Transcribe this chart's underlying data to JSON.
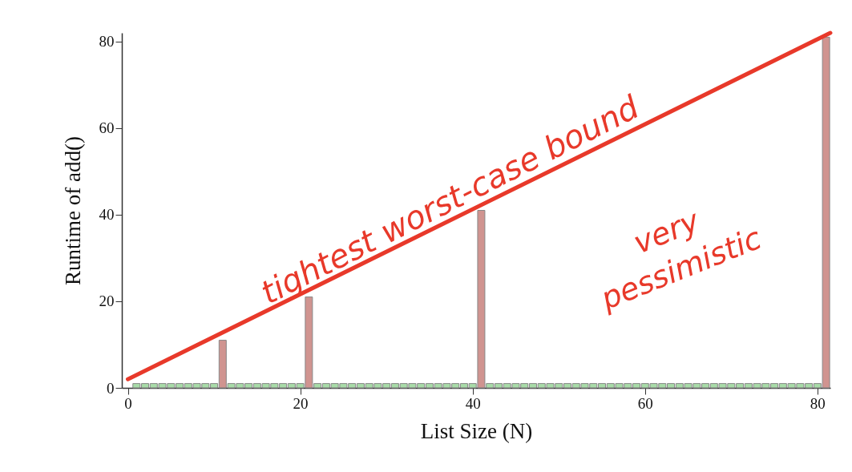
{
  "chart_data": {
    "type": "bar",
    "xlabel": "List Size (N)",
    "ylabel": "Runtime of add()",
    "xlim": [
      -0.7,
      81.5
    ],
    "xticks": [
      0,
      20,
      40,
      60,
      80
    ],
    "ylim": [
      0,
      82
    ],
    "yticks": [
      0,
      20,
      40,
      60,
      80
    ],
    "series": [
      {
        "x": [
          1,
          2,
          3,
          4,
          5,
          6,
          7,
          8,
          9,
          10,
          11,
          12,
          13,
          14,
          15,
          16,
          17,
          18,
          19,
          20,
          21,
          22,
          23,
          24,
          25,
          26,
          27,
          28,
          29,
          30,
          31,
          32,
          33,
          34,
          35,
          36,
          37,
          38,
          39,
          40,
          41,
          42,
          43,
          44,
          45,
          46,
          47,
          48,
          49,
          50,
          51,
          52,
          53,
          54,
          55,
          56,
          57,
          58,
          59,
          60,
          61,
          62,
          63,
          64,
          65,
          66,
          67,
          68,
          69,
          70,
          71,
          72,
          73,
          74,
          75,
          76,
          77,
          78,
          79,
          80,
          81
        ],
        "values": [
          1,
          1,
          1,
          1,
          1,
          1,
          1,
          1,
          1,
          1,
          11,
          1,
          1,
          1,
          1,
          1,
          1,
          1,
          1,
          1,
          21,
          1,
          1,
          1,
          1,
          1,
          1,
          1,
          1,
          1,
          1,
          1,
          1,
          1,
          1,
          1,
          1,
          1,
          1,
          1,
          41,
          1,
          1,
          1,
          1,
          1,
          1,
          1,
          1,
          1,
          1,
          1,
          1,
          1,
          1,
          1,
          1,
          1,
          1,
          1,
          1,
          1,
          1,
          1,
          1,
          1,
          1,
          1,
          1,
          1,
          1,
          1,
          1,
          1,
          1,
          1,
          1,
          1,
          1,
          1,
          81
        ],
        "colors": [
          "#a8dca8",
          "#a8dca8",
          "#a8dca8",
          "#a8dca8",
          "#a8dca8",
          "#a8dca8",
          "#a8dca8",
          "#a8dca8",
          "#a8dca8",
          "#a8dca8",
          "#d09490",
          "#a8dca8",
          "#a8dca8",
          "#a8dca8",
          "#a8dca8",
          "#a8dca8",
          "#a8dca8",
          "#a8dca8",
          "#a8dca8",
          "#a8dca8",
          "#d09490",
          "#a8dca8",
          "#a8dca8",
          "#a8dca8",
          "#a8dca8",
          "#a8dca8",
          "#a8dca8",
          "#a8dca8",
          "#a8dca8",
          "#a8dca8",
          "#a8dca8",
          "#a8dca8",
          "#a8dca8",
          "#a8dca8",
          "#a8dca8",
          "#a8dca8",
          "#a8dca8",
          "#a8dca8",
          "#a8dca8",
          "#a8dca8",
          "#d09490",
          "#a8dca8",
          "#a8dca8",
          "#a8dca8",
          "#a8dca8",
          "#a8dca8",
          "#a8dca8",
          "#a8dca8",
          "#a8dca8",
          "#a8dca8",
          "#a8dca8",
          "#a8dca8",
          "#a8dca8",
          "#a8dca8",
          "#a8dca8",
          "#a8dca8",
          "#a8dca8",
          "#a8dca8",
          "#a8dca8",
          "#a8dca8",
          "#a8dca8",
          "#a8dca8",
          "#a8dca8",
          "#a8dca8",
          "#a8dca8",
          "#a8dca8",
          "#a8dca8",
          "#a8dca8",
          "#a8dca8",
          "#a8dca8",
          "#a8dca8",
          "#a8dca8",
          "#a8dca8",
          "#a8dca8",
          "#a8dca8",
          "#a8dca8",
          "#a8dca8",
          "#a8dca8",
          "#a8dca8",
          "#a8dca8",
          "#d09490"
        ]
      },
      {
        "type": "line",
        "x": [
          0,
          81.5
        ],
        "values": [
          2,
          82
        ],
        "color": "#e8392a"
      }
    ],
    "annotations": [
      "tightest worst-case bound",
      "very pessimistic"
    ]
  }
}
